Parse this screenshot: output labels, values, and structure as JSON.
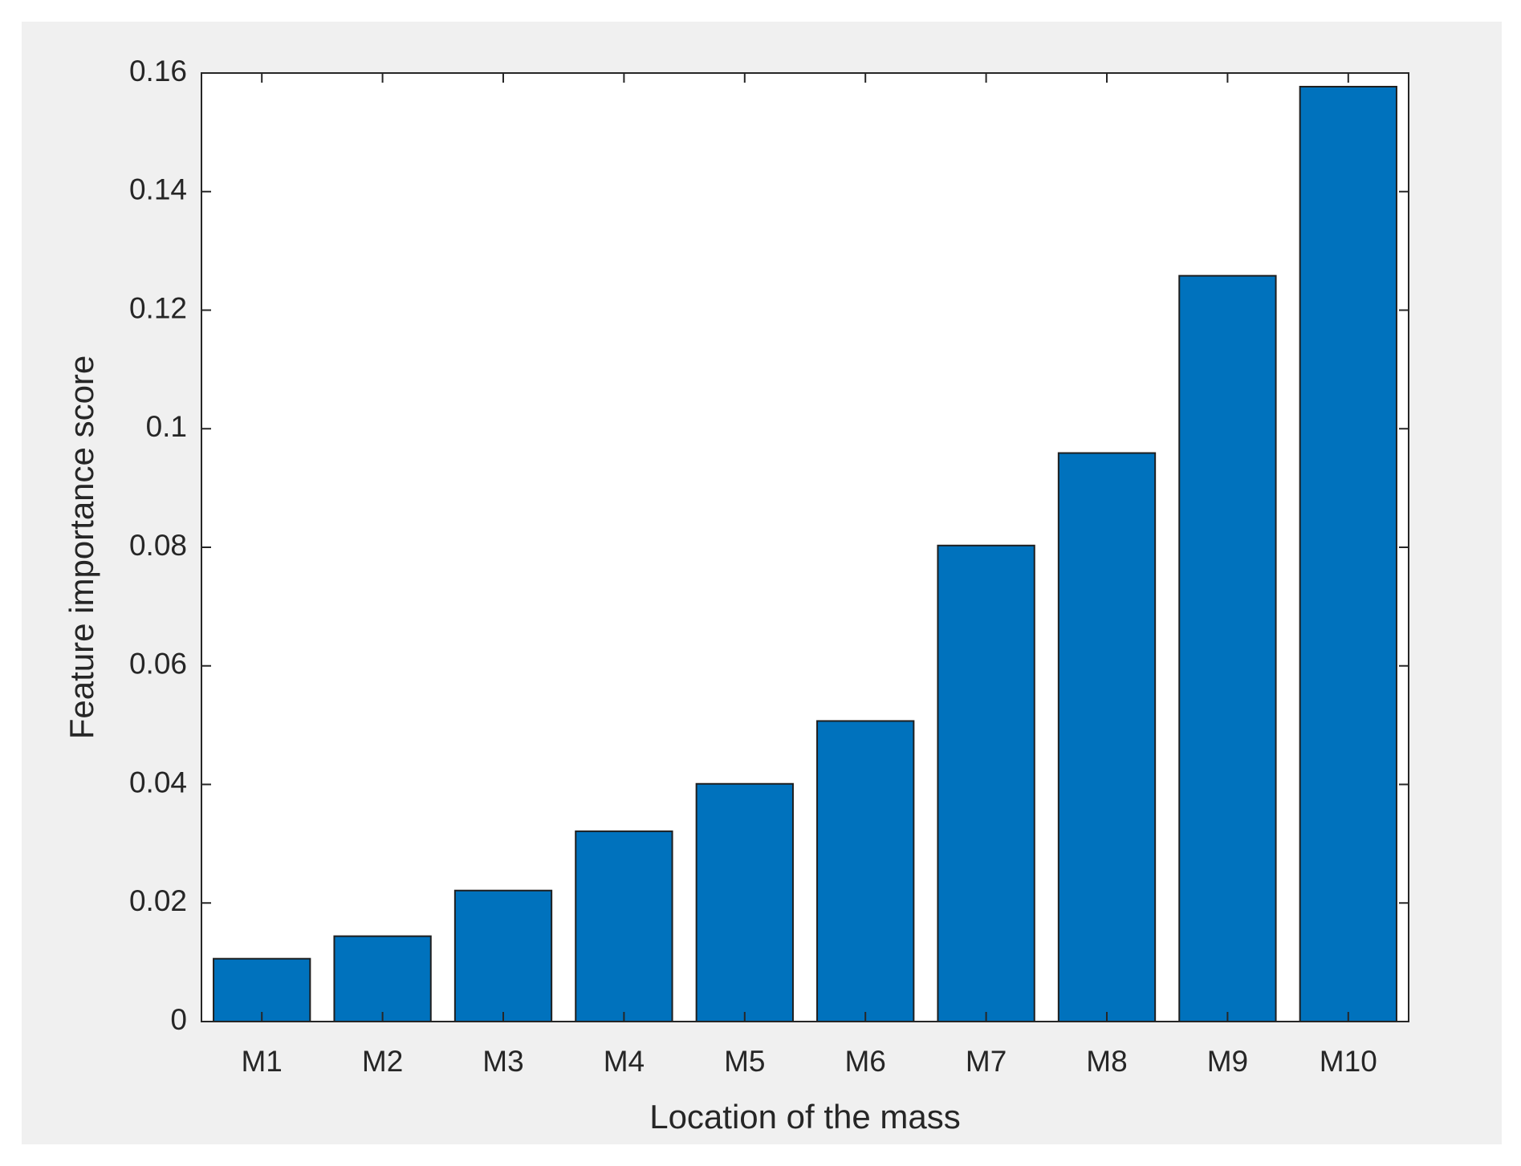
{
  "chart_data": {
    "type": "bar",
    "x_label": "Location of the mass",
    "y_label": "Feature importance score",
    "categories": [
      "M1",
      "M2",
      "M3",
      "M4",
      "M5",
      "M6",
      "M7",
      "M8",
      "M9",
      "M10"
    ],
    "values": [
      0.0106,
      0.0144,
      0.0221,
      0.0321,
      0.0401,
      0.0507,
      0.0803,
      0.0959,
      0.1258,
      0.1577
    ],
    "color": "#0072bd",
    "ylim": [
      0,
      0.16
    ],
    "yticks": [
      0,
      0.02,
      0.04,
      0.06,
      0.08,
      0.1,
      0.12,
      0.14,
      0.16
    ],
    "grid": false
  }
}
